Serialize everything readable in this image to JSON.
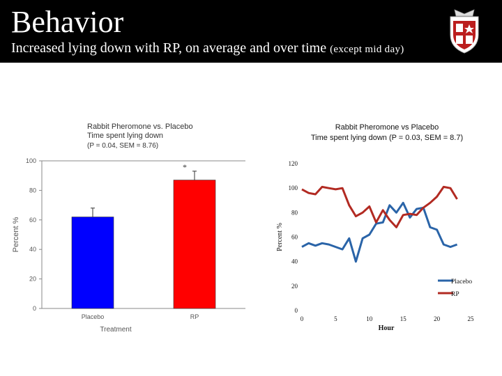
{
  "slide": {
    "title": "Behavior",
    "subtitle_main": "Increased lying down with RP, on average and over time",
    "subtitle_note": "(except mid day)"
  },
  "chart_data": [
    {
      "type": "bar",
      "title_line1": "Rabbit Pheromone vs. Placebo",
      "title_line2": "Time spent lying down",
      "stats": "(P = 0.04, SEM = 8.76)",
      "categories": [
        "Placebo",
        "RP"
      ],
      "values": [
        62,
        87
      ],
      "errors": [
        6,
        6
      ],
      "colors": [
        "#0000ff",
        "#ff0000"
      ],
      "significance_marker": "*",
      "xlabel": "Treatment",
      "ylabel": "Percent %",
      "ylim": [
        0,
        100
      ],
      "yticks": [
        0,
        20,
        40,
        60,
        80,
        100
      ],
      "grid": false
    },
    {
      "type": "line",
      "title_line1": "Rabbit Pheromone vs Placebo",
      "title_line2": "Time spent lying down (P = 0.03, SEM = 8.7)",
      "xlabel": "Hour",
      "ylabel": "Percent %",
      "xlim": [
        0,
        25
      ],
      "ylim": [
        0,
        120
      ],
      "xticks": [
        0,
        5,
        10,
        15,
        20,
        25
      ],
      "yticks": [
        0,
        20,
        40,
        60,
        80,
        100,
        120
      ],
      "legend_position": "bottom-right",
      "grid": false,
      "x": [
        0,
        1,
        2,
        3,
        4,
        5,
        6,
        7,
        8,
        9,
        10,
        11,
        12,
        13,
        14,
        15,
        16,
        17,
        18,
        19,
        20,
        21,
        22,
        23
      ],
      "series": [
        {
          "name": "Placebo",
          "color": "#2a64a8",
          "values": [
            52,
            55,
            53,
            55,
            54,
            52,
            50,
            59,
            40,
            59,
            62,
            71,
            72,
            86,
            80,
            88,
            76,
            83,
            84,
            68,
            66,
            54,
            52,
            54
          ]
        },
        {
          "name": "RP",
          "color": "#b22a22",
          "values": [
            99,
            96,
            95,
            101,
            100,
            99,
            100,
            86,
            77,
            80,
            85,
            72,
            82,
            74,
            68,
            78,
            79,
            78,
            84,
            88,
            93,
            101,
            100,
            91
          ]
        }
      ]
    }
  ]
}
